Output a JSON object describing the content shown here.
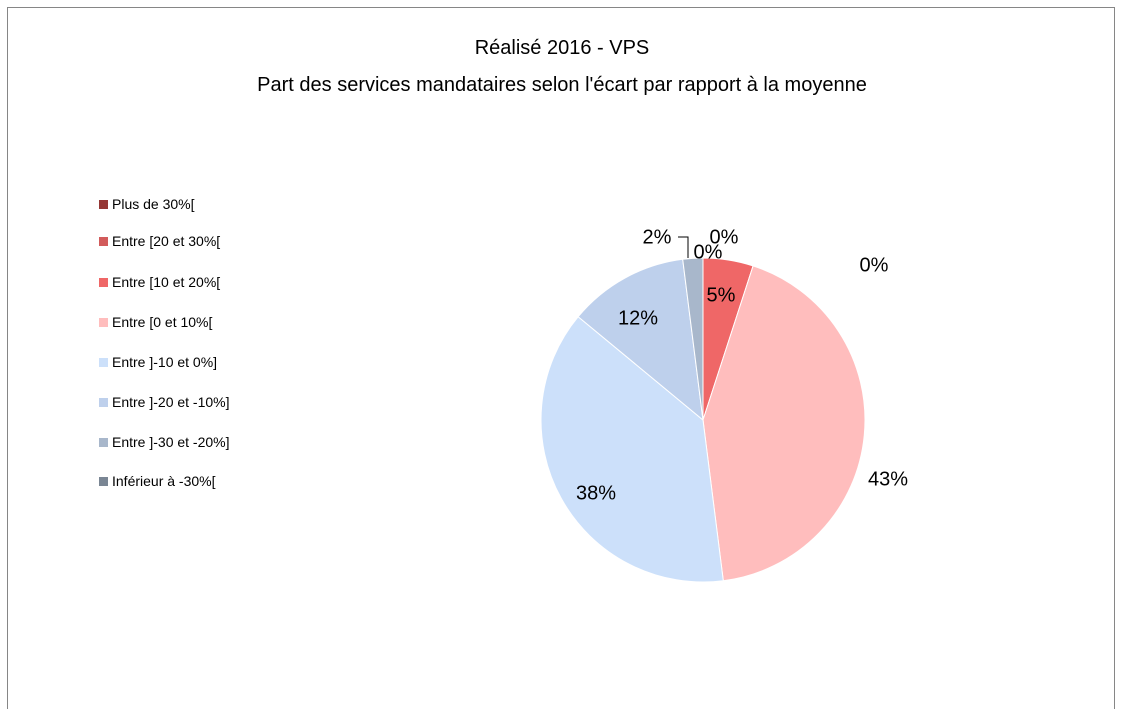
{
  "chart_data": {
    "type": "pie",
    "title": "Réalisé 2016 - VPS",
    "subtitle": "Part des services mandataires selon l'écart par rapport à la moyenne",
    "legend_position": "left",
    "slices": [
      {
        "label": "Plus de 30%[",
        "value": 0,
        "data_label": "0%",
        "color": "#953735"
      },
      {
        "label": "Entre [20 et 30%[",
        "value": 0,
        "data_label": "0%",
        "color": "#D25B5B"
      },
      {
        "label": "Entre [10 et 20%[",
        "value": 5,
        "data_label": "5%",
        "color": "#EF6767"
      },
      {
        "label": "Entre [0 et 10%[",
        "value": 43,
        "data_label": "43%",
        "color": "#FFBDBD"
      },
      {
        "label": "Entre ]-10 et 0%]",
        "value": 38,
        "data_label": "38%",
        "color": "#CCE0FA"
      },
      {
        "label": "Entre ]-20 et -10%]",
        "value": 12,
        "data_label": "12%",
        "color": "#BED0EC"
      },
      {
        "label": "Entre ]-30 et -20%]",
        "value": 2,
        "data_label": "2%",
        "color": "#A8B7CB"
      },
      {
        "label": "Inférieur à -30%[",
        "value": 0,
        "data_label": "0%",
        "color": "#7A8694"
      }
    ]
  }
}
